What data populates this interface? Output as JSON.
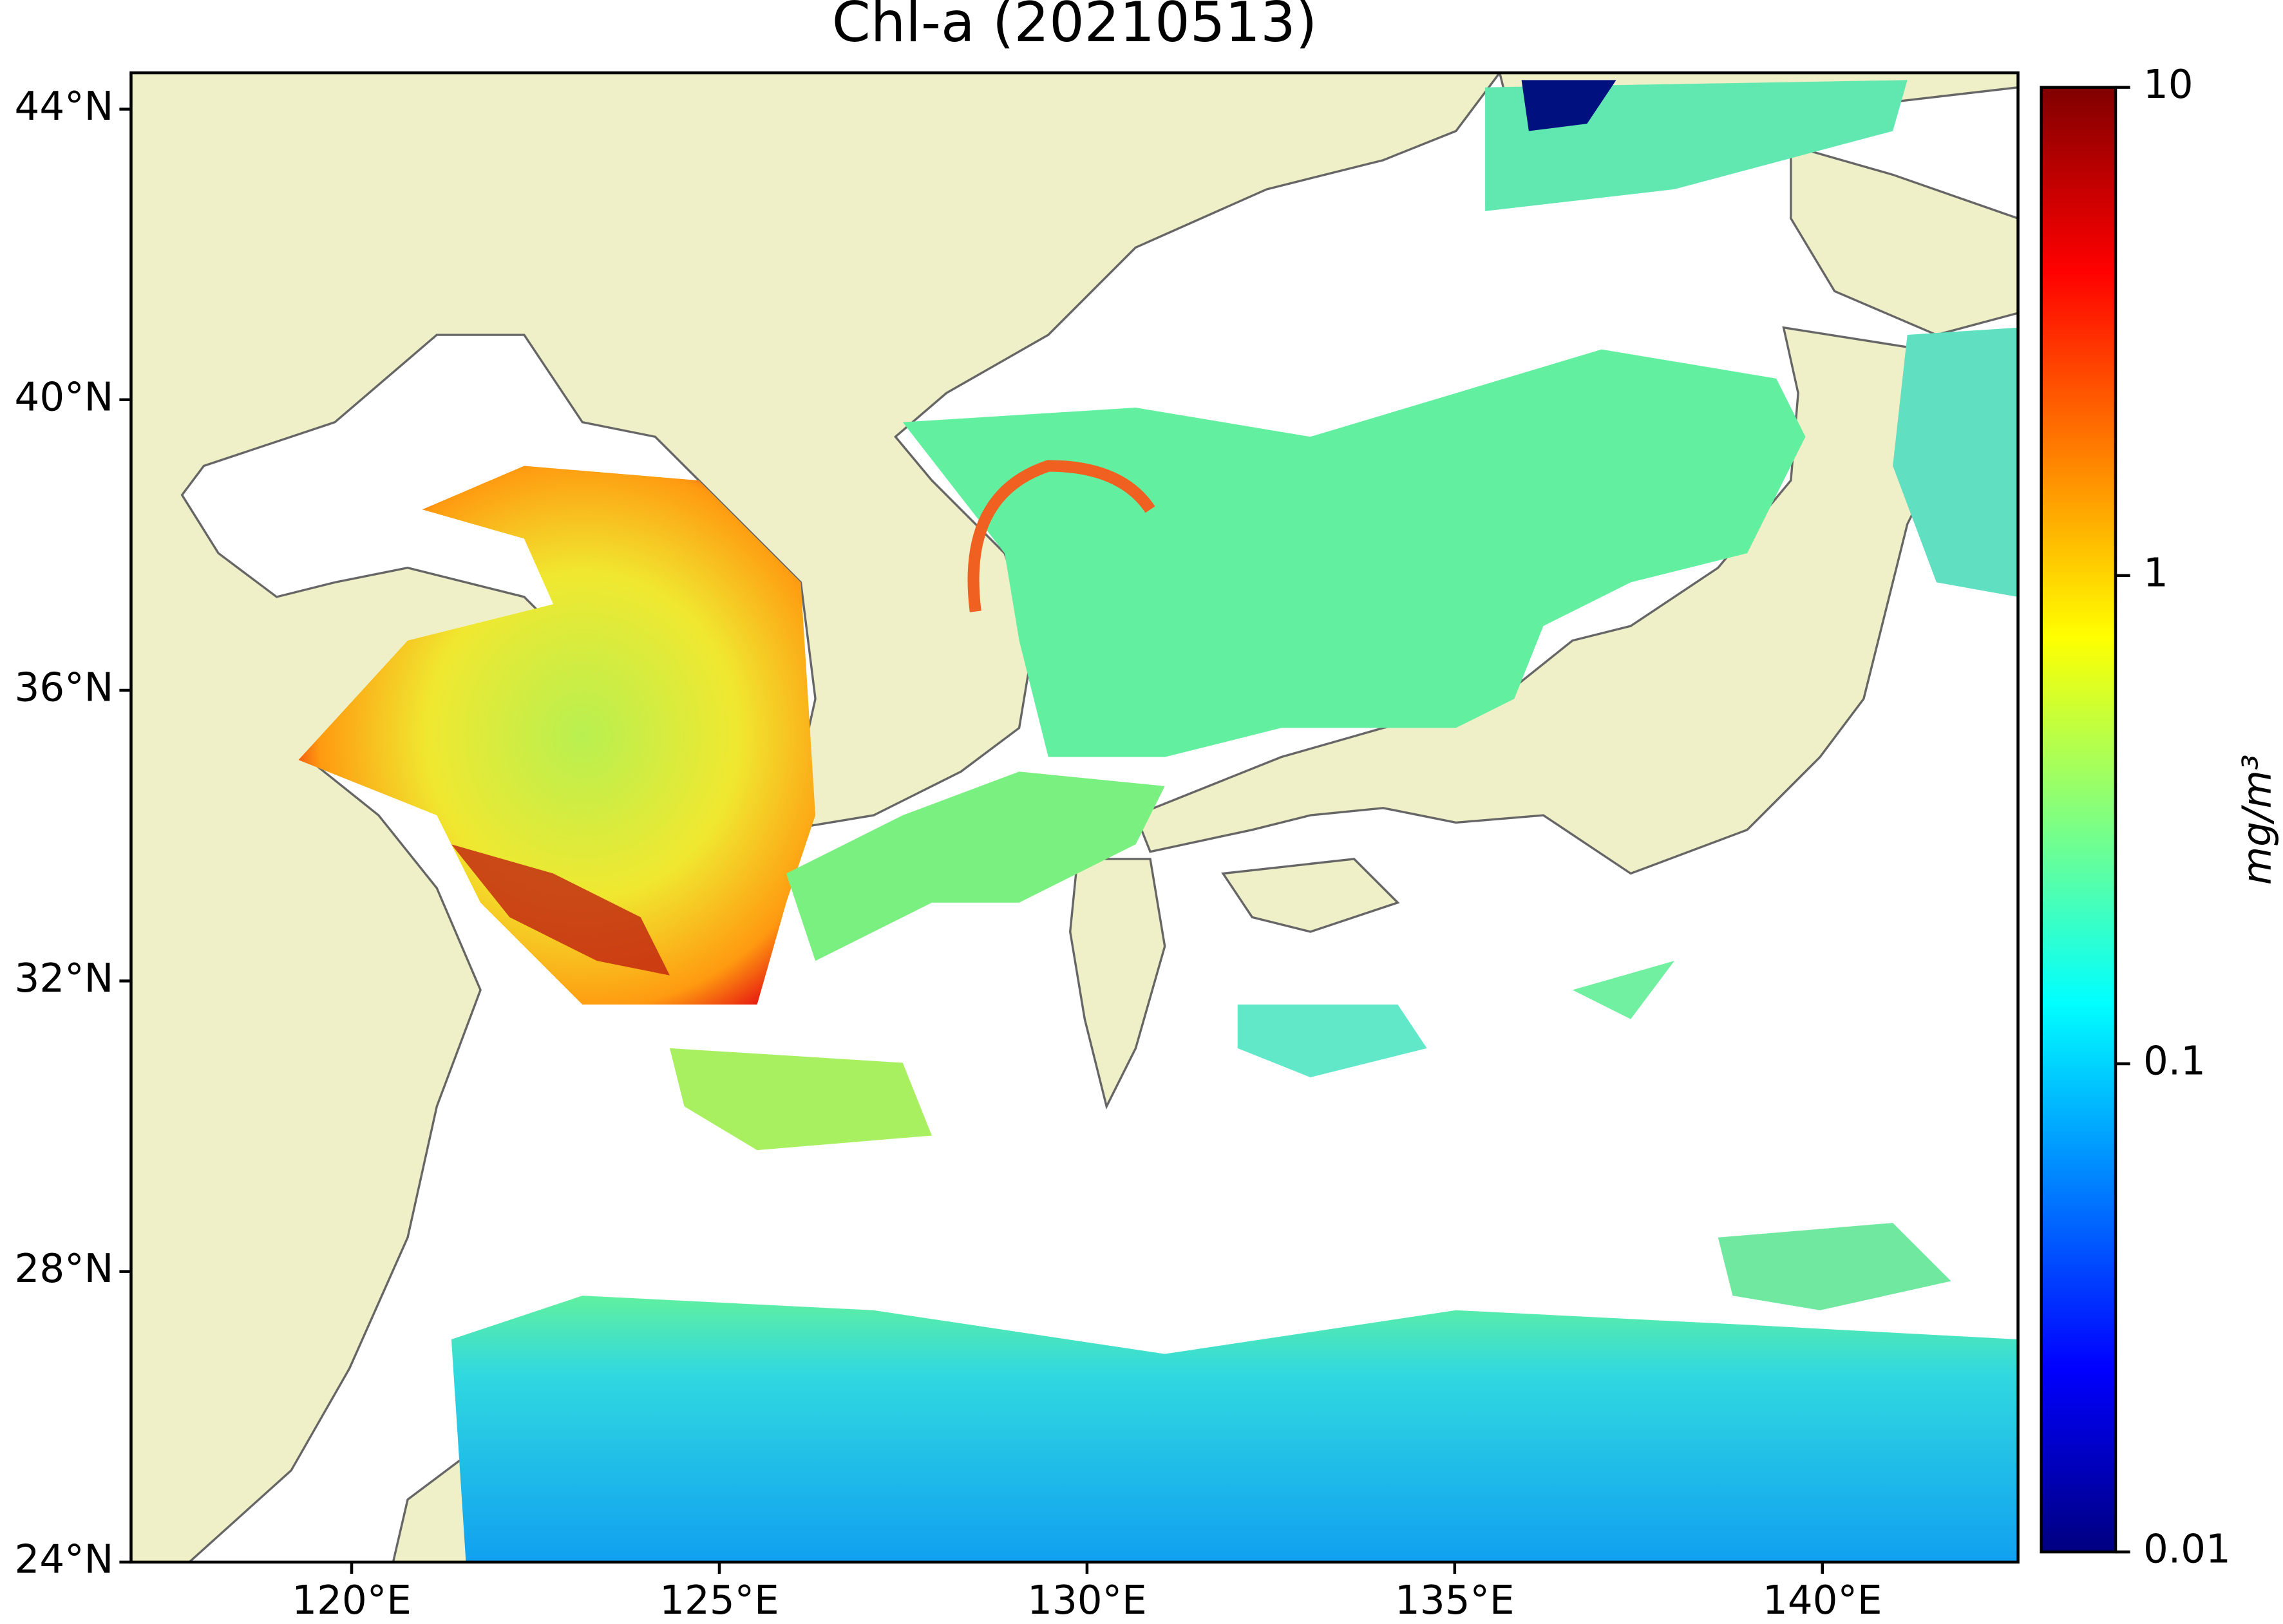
{
  "title": "Chl-a (20210513)",
  "map": {
    "xlim": [
      117,
      142.66
    ],
    "ylim": [
      24,
      44.5
    ],
    "xticks": [
      {
        "value": 120,
        "label": "120°E"
      },
      {
        "value": 125,
        "label": "125°E"
      },
      {
        "value": 130,
        "label": "130°E"
      },
      {
        "value": 135,
        "label": "135°E"
      },
      {
        "value": 140,
        "label": "140°E"
      }
    ],
    "yticks": [
      {
        "value": 24,
        "label": "24°N"
      },
      {
        "value": 28,
        "label": "28°N"
      },
      {
        "value": 32,
        "label": "32°N"
      },
      {
        "value": 36,
        "label": "36°N"
      },
      {
        "value": 40,
        "label": "40°N"
      },
      {
        "value": 44,
        "label": "44°N"
      }
    ]
  },
  "colorbar": {
    "label": "mg/m³",
    "scale": "log",
    "lim": [
      0.01,
      10
    ],
    "ticks": [
      0.01,
      0.1,
      1,
      10
    ]
  }
}
